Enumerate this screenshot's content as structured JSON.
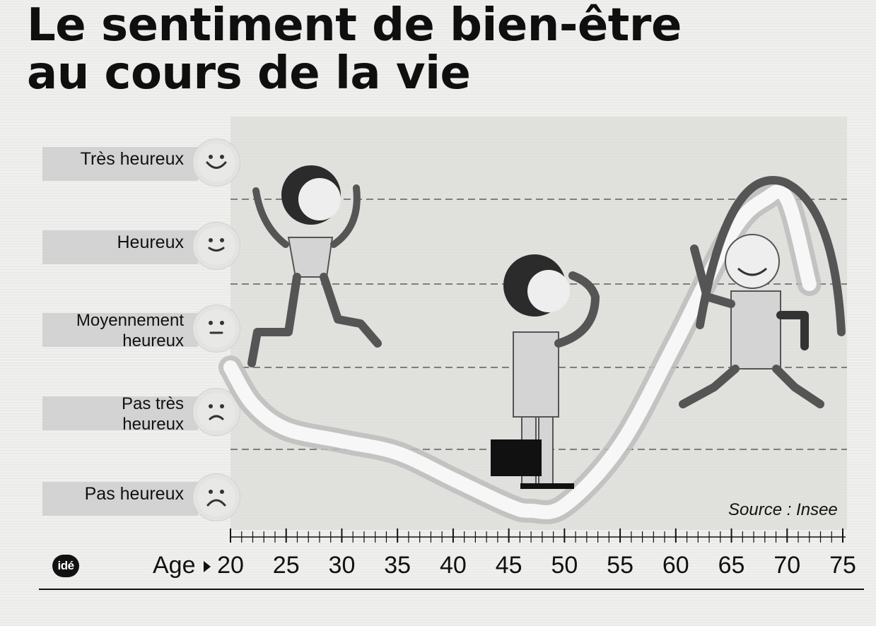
{
  "title_lines": [
    "Le sentiment de bien-être",
    "au cours de la vie"
  ],
  "levels": [
    {
      "label": "Très heureux",
      "mood": "very-happy"
    },
    {
      "label": "Heureux",
      "mood": "happy"
    },
    {
      "label": "Moyennement heureux",
      "mood": "neutral"
    },
    {
      "label": "Pas très heureux",
      "mood": "unhappy"
    },
    {
      "label": "Pas heureux",
      "mood": "very-unhappy"
    }
  ],
  "source": "Source : Insee",
  "age_label": "Age",
  "logo_text": "idé",
  "chart_data": {
    "type": "line",
    "xlabel": "Age",
    "xlim": [
      20,
      75
    ],
    "xticks": [
      20,
      25,
      30,
      35,
      40,
      45,
      50,
      55,
      60,
      65,
      70,
      75
    ],
    "ylim": [
      0,
      4
    ],
    "yticks": [
      0,
      1,
      2,
      3,
      4
    ],
    "ytick_labels": [
      "Pas heureux",
      "Pas très heureux",
      "Moyennement heureux",
      "Heureux",
      "Très heureux"
    ],
    "series": [
      {
        "x": [
          20,
          22,
          25,
          30,
          35,
          40,
          45,
          47,
          50,
          55,
          60,
          65,
          68,
          70,
          72
        ],
        "y": [
          2.0,
          1.55,
          1.25,
          1.1,
          0.95,
          0.6,
          0.25,
          0.18,
          0.25,
          1.05,
          2.3,
          3.6,
          4.15,
          4.0,
          3.0
        ]
      }
    ],
    "grid": true
  }
}
